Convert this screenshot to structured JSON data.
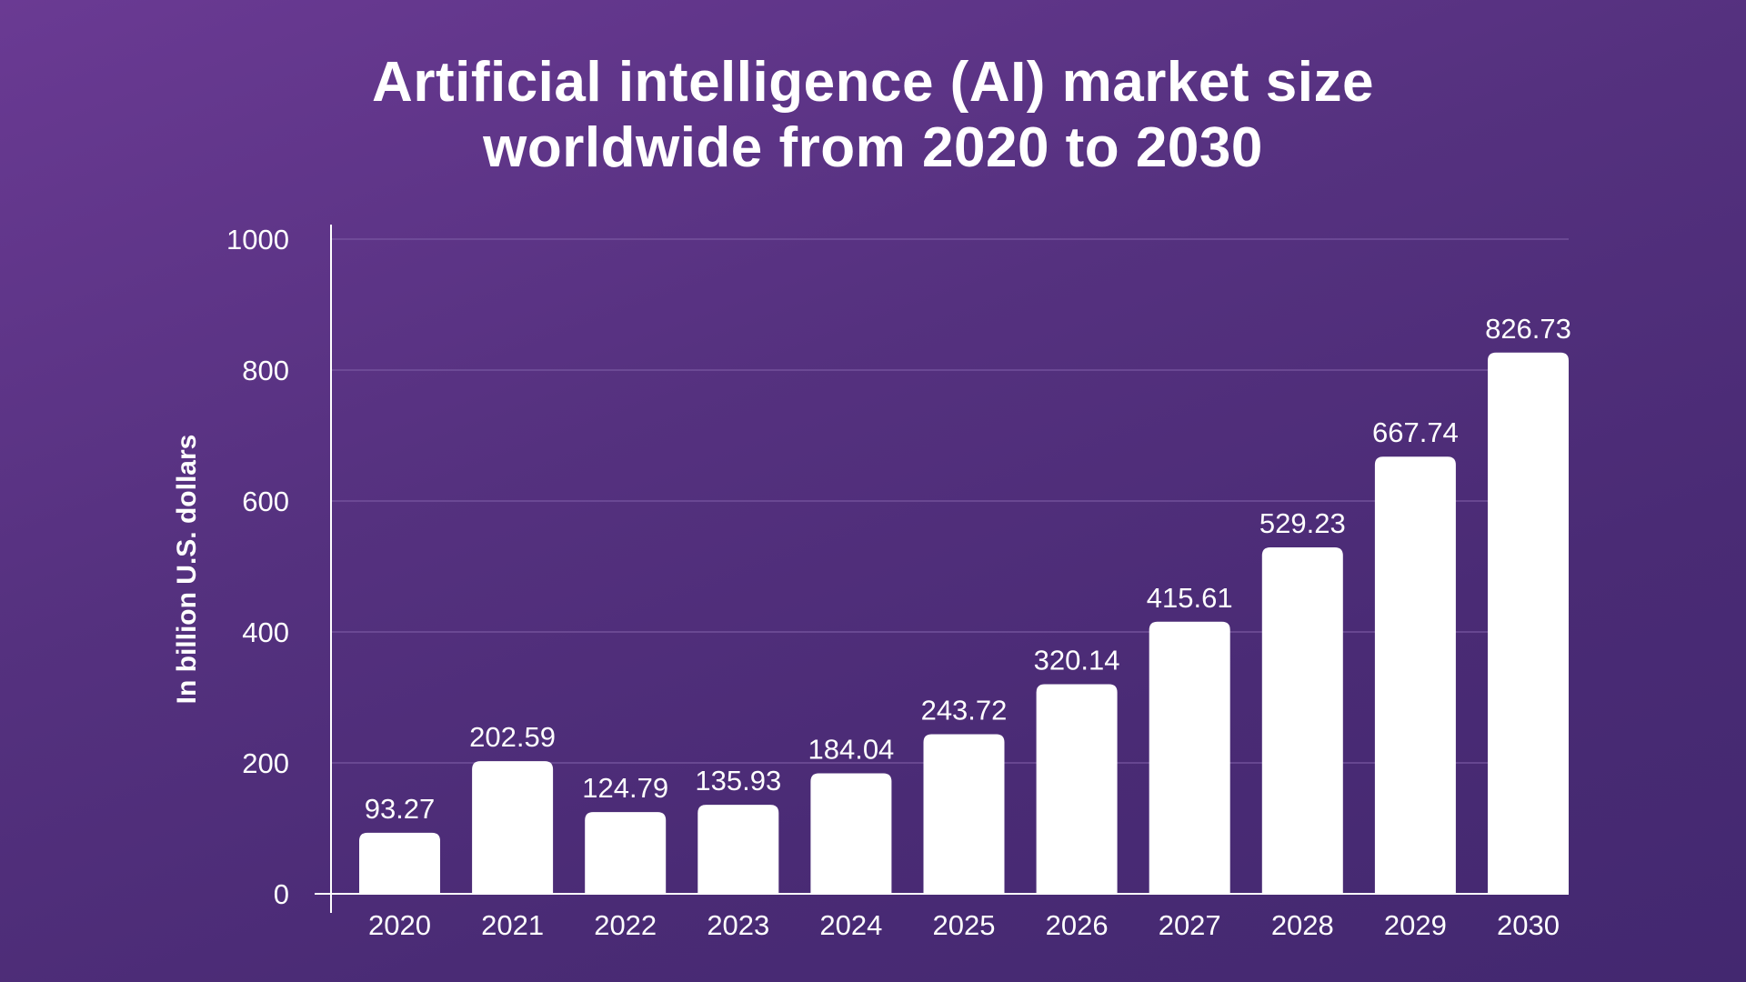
{
  "chart_data": {
    "type": "bar",
    "title_lines": [
      "Artificial intelligence (AI) market size",
      "worldwide from 2020 to 2030"
    ],
    "xlabel": "",
    "ylabel": "In billion U.S. dollars",
    "categories": [
      "2020",
      "2021",
      "2022",
      "2023",
      "2024",
      "2025",
      "2026",
      "2027",
      "2028",
      "2029",
      "2030"
    ],
    "values": [
      93.27,
      202.59,
      124.79,
      135.93,
      184.04,
      243.72,
      320.14,
      415.61,
      529.23,
      667.74,
      826.73
    ],
    "value_labels": [
      "93.27",
      "202.59",
      "124.79",
      "135.93",
      "184.04",
      "243.72",
      "320.14",
      "415.61",
      "529.23",
      "667.74",
      "826.73"
    ],
    "ylim": [
      0,
      1000
    ],
    "yticks": [
      0,
      200,
      400,
      600,
      800,
      1000
    ],
    "grid": true,
    "legend": "none",
    "colors": {
      "bar": "#ffffff",
      "text": "#ffffff",
      "gridline": "#7a5aa3",
      "axis": "#ffffff"
    }
  }
}
